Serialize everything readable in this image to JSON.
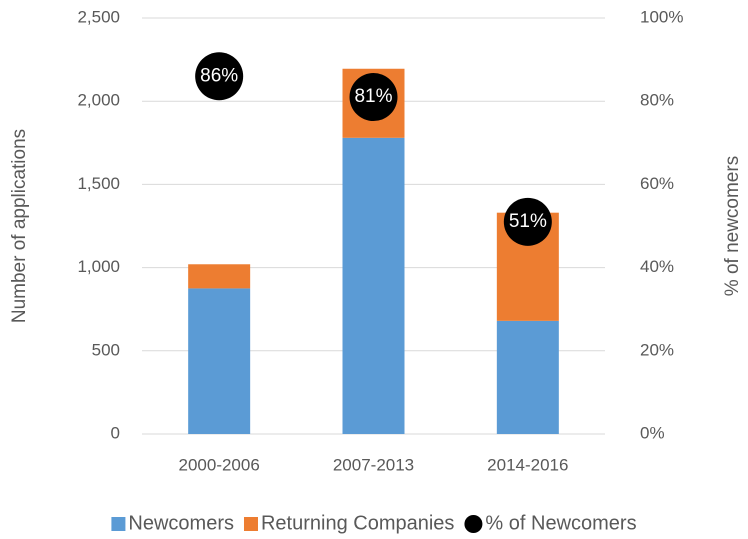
{
  "chart_data": {
    "type": "bar",
    "stacked": true,
    "categories": [
      "2000-2006",
      "2007-2013",
      "2014-2016"
    ],
    "series": [
      {
        "name": "Newcomers",
        "color": "#5b9bd5",
        "values": [
          875,
          1780,
          680
        ]
      },
      {
        "name": "Returning Companies",
        "color": "#ed7d31",
        "values": [
          145,
          415,
          650
        ]
      },
      {
        "name": "% of Newcomers",
        "color": "#000000",
        "type": "scatter",
        "axis": "y2",
        "values": [
          86,
          81,
          51
        ],
        "value_labels": [
          "86%",
          "81%",
          "51%"
        ]
      }
    ],
    "ylabel": "Number of applications",
    "y2label": "% of newcomers",
    "ylim": [
      0,
      2500
    ],
    "yticks": [
      0,
      500,
      {
        "value": 1000,
        "label": "1,000"
      },
      {
        "value": 1500,
        "label": "1,500"
      },
      {
        "value": 2000,
        "label": "2,000"
      },
      {
        "value": 2500,
        "label": "2,500"
      }
    ],
    "y2lim": [
      0,
      100
    ],
    "y2ticks": [
      {
        "value": 0,
        "label": "0%"
      },
      {
        "value": 20,
        "label": "20%"
      },
      {
        "value": 40,
        "label": "40%"
      },
      {
        "value": 60,
        "label": "60%"
      },
      {
        "value": 80,
        "label": "80%"
      },
      {
        "value": 100,
        "label": "100%"
      }
    ],
    "grid": true,
    "legend": "bottom"
  }
}
